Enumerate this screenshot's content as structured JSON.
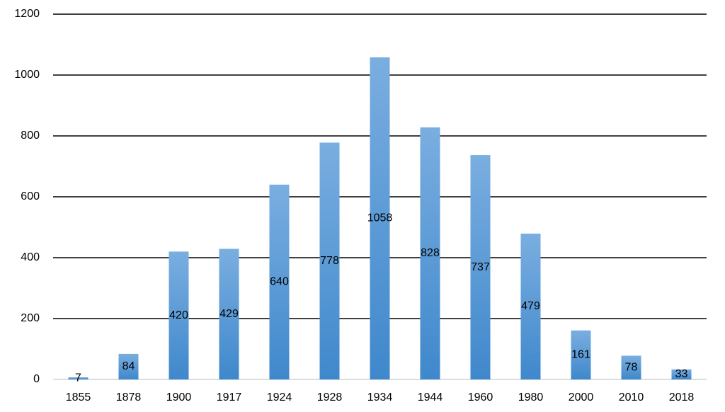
{
  "chart_data": {
    "type": "bar",
    "categories": [
      "1855",
      "1878",
      "1900",
      "1917",
      "1924",
      "1928",
      "1934",
      "1944",
      "1960",
      "1980",
      "2000",
      "2010",
      "2018"
    ],
    "values": [
      7,
      84,
      420,
      429,
      640,
      778,
      1058,
      828,
      737,
      479,
      161,
      78,
      33
    ],
    "color": "#5b9bd5",
    "ylim": [
      0,
      1200
    ],
    "yticks": [
      0,
      200,
      400,
      600,
      800,
      1000,
      1200
    ],
    "grid": true,
    "data_labels": true
  }
}
